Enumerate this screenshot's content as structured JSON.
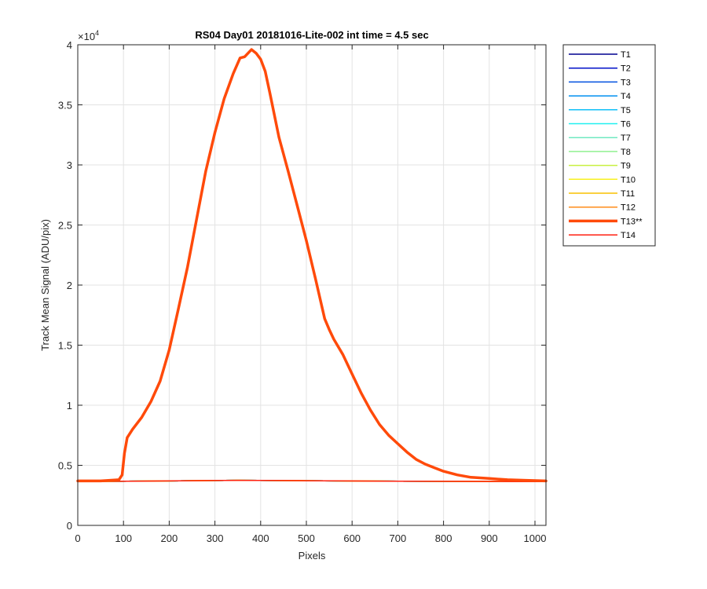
{
  "chart_data": {
    "type": "line",
    "title": "RS04 Day01 20181016-Lite-002 int time = 4.5 sec",
    "xlabel": "Pixels",
    "ylabel": "Track Mean Signal (ADU/pix)",
    "y_exponent_label": "×10",
    "y_exponent_power": "4",
    "xlim": [
      0,
      1024
    ],
    "ylim": [
      0,
      40000
    ],
    "x_ticks": [
      0,
      100,
      200,
      300,
      400,
      500,
      600,
      700,
      800,
      900,
      1000
    ],
    "x_tick_labels": [
      "0",
      "100",
      "200",
      "300",
      "400",
      "500",
      "600",
      "700",
      "800",
      "900",
      "1000"
    ],
    "y_ticks": [
      0,
      5000,
      10000,
      15000,
      20000,
      25000,
      30000,
      35000,
      40000
    ],
    "y_tick_labels": [
      "0",
      "0.5",
      "1",
      "1.5",
      "2",
      "2.5",
      "3",
      "3.5",
      "4"
    ],
    "grid": true,
    "legend_position": "outside-right-top",
    "series": [
      {
        "name": "T1",
        "color": "#00008f",
        "width": 1.5,
        "x": [
          0,
          200,
          350,
          500,
          700,
          900,
          1024
        ],
        "values": [
          3650,
          3700,
          3750,
          3720,
          3680,
          3660,
          3650
        ]
      },
      {
        "name": "T2",
        "color": "#0010c8",
        "width": 1.5,
        "x": [
          0,
          200,
          350,
          500,
          700,
          900,
          1024
        ],
        "values": [
          3650,
          3700,
          3750,
          3720,
          3680,
          3660,
          3650
        ]
      },
      {
        "name": "T3",
        "color": "#0050e0",
        "width": 1.5,
        "x": [
          0,
          200,
          350,
          500,
          700,
          900,
          1024
        ],
        "values": [
          3650,
          3700,
          3750,
          3720,
          3680,
          3660,
          3650
        ]
      },
      {
        "name": "T4",
        "color": "#0090f0",
        "width": 1.5,
        "x": [
          0,
          200,
          350,
          500,
          700,
          900,
          1024
        ],
        "values": [
          3650,
          3700,
          3750,
          3720,
          3680,
          3660,
          3650
        ]
      },
      {
        "name": "T5",
        "color": "#10c0f8",
        "width": 1.5,
        "x": [
          0,
          200,
          350,
          500,
          700,
          900,
          1024
        ],
        "values": [
          3650,
          3700,
          3750,
          3720,
          3680,
          3660,
          3650
        ]
      },
      {
        "name": "T6",
        "color": "#20f0f0",
        "width": 1.5,
        "x": [
          0,
          200,
          350,
          500,
          700,
          900,
          1024
        ],
        "values": [
          3650,
          3700,
          3750,
          3720,
          3680,
          3660,
          3650
        ]
      },
      {
        "name": "T7",
        "color": "#70e8c0",
        "width": 1.5,
        "x": [
          0,
          200,
          350,
          500,
          700,
          900,
          1024
        ],
        "values": [
          3650,
          3700,
          3750,
          3720,
          3680,
          3660,
          3650
        ]
      },
      {
        "name": "T8",
        "color": "#90f090",
        "width": 1.5,
        "x": [
          0,
          200,
          350,
          500,
          700,
          900,
          1024
        ],
        "values": [
          3650,
          3700,
          3750,
          3720,
          3680,
          3660,
          3650
        ]
      },
      {
        "name": "T9",
        "color": "#c8f040",
        "width": 1.5,
        "x": [
          0,
          200,
          350,
          500,
          700,
          900,
          1024
        ],
        "values": [
          3650,
          3700,
          3750,
          3720,
          3680,
          3660,
          3650
        ]
      },
      {
        "name": "T10",
        "color": "#f8f020",
        "width": 1.5,
        "x": [
          0,
          200,
          350,
          500,
          700,
          900,
          1024
        ],
        "values": [
          3650,
          3700,
          3750,
          3720,
          3680,
          3660,
          3650
        ]
      },
      {
        "name": "T11",
        "color": "#f8c000",
        "width": 1.5,
        "x": [
          0,
          200,
          350,
          500,
          700,
          900,
          1024
        ],
        "values": [
          3650,
          3700,
          3750,
          3720,
          3680,
          3660,
          3650
        ]
      },
      {
        "name": "T12",
        "color": "#ff8c1a",
        "width": 1.5,
        "x": [
          0,
          200,
          350,
          500,
          700,
          900,
          1024
        ],
        "values": [
          3650,
          3700,
          3750,
          3720,
          3680,
          3660,
          3650
        ]
      },
      {
        "name": "T14",
        "color": "#ff2010",
        "width": 1.5,
        "x": [
          0,
          200,
          350,
          500,
          700,
          900,
          1024
        ],
        "values": [
          3650,
          3700,
          3750,
          3720,
          3680,
          3660,
          3650
        ]
      },
      {
        "name": "T13**",
        "color": "#ff4a0a",
        "width": 3.5,
        "x": [
          0,
          50,
          90,
          97,
          102,
          108,
          120,
          140,
          160,
          180,
          200,
          220,
          240,
          260,
          280,
          300,
          320,
          340,
          355,
          365,
          380,
          390,
          400,
          410,
          420,
          440,
          460,
          480,
          500,
          520,
          540,
          550,
          560,
          580,
          600,
          620,
          640,
          660,
          680,
          700,
          720,
          740,
          760,
          780,
          800,
          830,
          860,
          900,
          940,
          980,
          1024
        ],
        "values": [
          3700,
          3700,
          3800,
          4200,
          6000,
          7300,
          8000,
          9000,
          10300,
          12000,
          14600,
          18000,
          21500,
          25500,
          29500,
          32700,
          35500,
          37600,
          38900,
          39000,
          39600,
          39300,
          38800,
          37800,
          36000,
          32300,
          29500,
          26600,
          23700,
          20500,
          17200,
          16300,
          15500,
          14200,
          12600,
          11000,
          9600,
          8400,
          7500,
          6800,
          6100,
          5500,
          5100,
          4800,
          4500,
          4200,
          4000,
          3900,
          3800,
          3750,
          3700
        ]
      }
    ],
    "legend": [
      {
        "label": "T1",
        "color": "#00008f",
        "width": 1.5
      },
      {
        "label": "T2",
        "color": "#0010c8",
        "width": 1.5
      },
      {
        "label": "T3",
        "color": "#0050e0",
        "width": 1.5
      },
      {
        "label": "T4",
        "color": "#0090f0",
        "width": 1.5
      },
      {
        "label": "T5",
        "color": "#10c0f8",
        "width": 1.5
      },
      {
        "label": "T6",
        "color": "#20f0f0",
        "width": 1.5
      },
      {
        "label": "T7",
        "color": "#70e8c0",
        "width": 1.5
      },
      {
        "label": "T8",
        "color": "#90f090",
        "width": 1.5
      },
      {
        "label": "T9",
        "color": "#c8f040",
        "width": 1.5
      },
      {
        "label": "T10",
        "color": "#f8f020",
        "width": 1.5
      },
      {
        "label": "T11",
        "color": "#f8c000",
        "width": 1.5
      },
      {
        "label": "T12",
        "color": "#ff8c1a",
        "width": 1.5
      },
      {
        "label": "T13**",
        "color": "#ff4a0a",
        "width": 3.5
      },
      {
        "label": "T14",
        "color": "#ff2010",
        "width": 1.5
      }
    ]
  }
}
